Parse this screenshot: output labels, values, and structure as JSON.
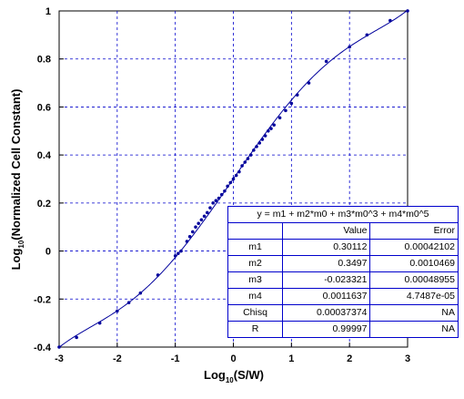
{
  "chart_data": {
    "type": "scatter",
    "xlabel": {
      "base": "Log",
      "sub": "10",
      "rest": "(S/W)"
    },
    "ylabel": {
      "base": "Log",
      "sub": "10",
      "rest": "(Normalized Cell Constant)"
    },
    "xlim": [
      -3,
      3
    ],
    "ylim": [
      -0.4,
      1
    ],
    "xticks": [
      -3,
      -2,
      -1,
      0,
      1,
      2,
      3
    ],
    "yticks": [
      -0.4,
      -0.2,
      0,
      0.2,
      0.4,
      0.6,
      0.8,
      1
    ],
    "xtick_labels": [
      "-3",
      "-2",
      "-1",
      "0",
      "1",
      "2",
      "3"
    ],
    "ytick_labels": [
      "-0.4",
      "-0.2",
      "0",
      "0.2",
      "0.4",
      "0.6",
      "0.8",
      "1"
    ],
    "grid": true,
    "fit_curve": {
      "type": "polynomial",
      "coefficients": {
        "m1": 0.30112,
        "m2": 0.3497,
        "m3": -0.023321,
        "m4": 0.0011637
      }
    },
    "series": [
      {
        "x": [
          -3.0,
          -2.7,
          -2.3,
          -2.0,
          -1.8,
          -1.6,
          -1.3,
          -1.0,
          -0.95,
          -0.9,
          -0.8,
          -0.75,
          -0.7,
          -0.65,
          -0.6,
          -0.55,
          -0.5,
          -0.45,
          -0.4,
          -0.35,
          -0.3,
          -0.25,
          -0.2,
          -0.15,
          -0.1,
          -0.05,
          0.0,
          0.05,
          0.1,
          0.15,
          0.2,
          0.25,
          0.3,
          0.35,
          0.4,
          0.45,
          0.5,
          0.55,
          0.6,
          0.65,
          0.7,
          0.8,
          0.9,
          1.0,
          1.1,
          1.3,
          1.6,
          2.0,
          2.3,
          2.7,
          3.0
        ],
        "y": [
          -0.4,
          -0.36,
          -0.3,
          -0.25,
          -0.215,
          -0.175,
          -0.1,
          -0.02,
          -0.01,
          0.0,
          0.04,
          0.06,
          0.08,
          0.1,
          0.115,
          0.13,
          0.145,
          0.16,
          0.18,
          0.2,
          0.21,
          0.22,
          0.235,
          0.25,
          0.27,
          0.285,
          0.3,
          0.315,
          0.33,
          0.355,
          0.37,
          0.385,
          0.4,
          0.42,
          0.435,
          0.45,
          0.465,
          0.48,
          0.5,
          0.51,
          0.525,
          0.555,
          0.585,
          0.615,
          0.65,
          0.7,
          0.79,
          0.85,
          0.9,
          0.96,
          1.0
        ]
      }
    ]
  },
  "fit_table": {
    "equation": "y = m1 + m2*m0 + m3*m0^3 + m4*m0^5",
    "headers": [
      "",
      "Value",
      "Error"
    ],
    "rows": [
      {
        "name": "m1",
        "value": "0.30112",
        "error": "0.00042102"
      },
      {
        "name": "m2",
        "value": "0.3497",
        "error": "0.0010469"
      },
      {
        "name": "m3",
        "value": "-0.023321",
        "error": "0.00048955"
      },
      {
        "name": "m4",
        "value": "0.0011637",
        "error": "4.7487e-05"
      },
      {
        "name": "Chisq",
        "value": "0.00037374",
        "error": "NA"
      },
      {
        "name": "R",
        "value": "0.99997",
        "error": "NA"
      }
    ]
  },
  "colors": {
    "data": "#00009c",
    "grid": "#0000cc",
    "axis": "#000000"
  }
}
